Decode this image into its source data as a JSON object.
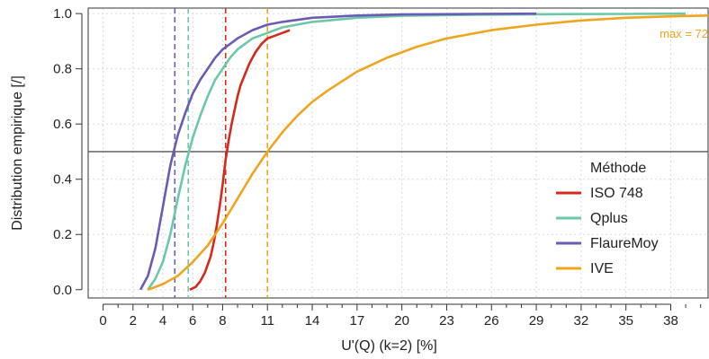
{
  "chart_data": {
    "type": "line",
    "xlabel": "U'(Q) (k=2) [%]",
    "ylabel": "Distribution empirique [/]",
    "xlim": [
      -1,
      40.5
    ],
    "ylim": [
      -0.03,
      1.02
    ],
    "x_major_ticks": [
      0,
      2,
      4,
      6,
      8,
      11,
      14,
      17,
      20,
      23,
      26,
      29,
      32,
      35,
      38
    ],
    "x_minor_ticks": [
      1,
      3,
      5,
      7,
      9,
      10,
      12,
      13,
      15,
      16,
      18,
      19,
      21,
      22,
      24,
      25,
      27,
      28,
      30,
      31,
      33,
      34,
      36,
      37,
      39,
      40
    ],
    "y_ticks": [
      0.0,
      0.2,
      0.4,
      0.6,
      0.8,
      1.0
    ],
    "y_tick_labels": [
      "0.0",
      "0.2",
      "0.4",
      "0.6",
      "0.8",
      "1.0"
    ],
    "grid": true,
    "legend": {
      "title": "Méthode",
      "position": "right"
    },
    "hline": {
      "y": 0.5,
      "color": "#555555"
    },
    "series": [
      {
        "name": "ISO 748",
        "color": "#d42a1e",
        "median": 8.2,
        "x": [
          5.8,
          6.2,
          6.5,
          6.8,
          7.0,
          7.2,
          7.4,
          7.6,
          7.8,
          8.0,
          8.2,
          8.4,
          8.6,
          8.8,
          9.0,
          9.2,
          9.5,
          9.8,
          10.2,
          10.6,
          11.0,
          11.5,
          12.0,
          12.5
        ],
        "y": [
          0.0,
          0.01,
          0.03,
          0.06,
          0.09,
          0.12,
          0.17,
          0.23,
          0.3,
          0.38,
          0.47,
          0.54,
          0.6,
          0.65,
          0.7,
          0.74,
          0.78,
          0.82,
          0.86,
          0.89,
          0.91,
          0.92,
          0.93,
          0.94
        ]
      },
      {
        "name": "Qplus",
        "color": "#6cc8a8",
        "median": 5.7,
        "x": [
          3.0,
          3.5,
          4.0,
          4.5,
          5.0,
          5.5,
          6.0,
          6.5,
          7.0,
          7.5,
          8.0,
          8.5,
          9.0,
          10.0,
          11.0,
          12.0,
          14.0,
          17.0,
          20.0,
          25.0,
          30.0,
          35.0,
          39.0
        ],
        "y": [
          0.0,
          0.04,
          0.1,
          0.2,
          0.33,
          0.45,
          0.55,
          0.63,
          0.7,
          0.76,
          0.8,
          0.84,
          0.87,
          0.91,
          0.93,
          0.95,
          0.97,
          0.985,
          0.992,
          0.996,
          0.998,
          0.999,
          1.0
        ]
      },
      {
        "name": "FlaureMoy",
        "color": "#6a5bb5",
        "median": 4.8,
        "x": [
          2.5,
          3.0,
          3.5,
          4.0,
          4.5,
          5.0,
          5.5,
          6.0,
          6.5,
          7.0,
          7.5,
          8.0,
          9.0,
          10.0,
          11.0,
          12.0,
          14.0,
          17.0,
          20.0,
          25.0,
          29.0
        ],
        "y": [
          0.0,
          0.05,
          0.15,
          0.3,
          0.45,
          0.56,
          0.64,
          0.71,
          0.76,
          0.8,
          0.84,
          0.87,
          0.91,
          0.94,
          0.96,
          0.97,
          0.985,
          0.993,
          0.997,
          0.999,
          1.0
        ]
      },
      {
        "name": "IVE",
        "color": "#f0a51e",
        "median": 11.0,
        "x": [
          3.0,
          4.0,
          5.0,
          6.0,
          7.0,
          8.0,
          9.0,
          10.0,
          11.0,
          12.0,
          13.0,
          14.0,
          15.0,
          17.0,
          19.0,
          21.0,
          23.0,
          26.0,
          29.0,
          32.0,
          35.0,
          38.0,
          40.5
        ],
        "y": [
          0.0,
          0.02,
          0.05,
          0.1,
          0.16,
          0.24,
          0.33,
          0.42,
          0.5,
          0.57,
          0.63,
          0.68,
          0.72,
          0.79,
          0.84,
          0.88,
          0.91,
          0.94,
          0.96,
          0.975,
          0.985,
          0.99,
          0.993
        ]
      }
    ],
    "annotation": {
      "text": "max = 72",
      "color": "#f0a51e"
    }
  }
}
